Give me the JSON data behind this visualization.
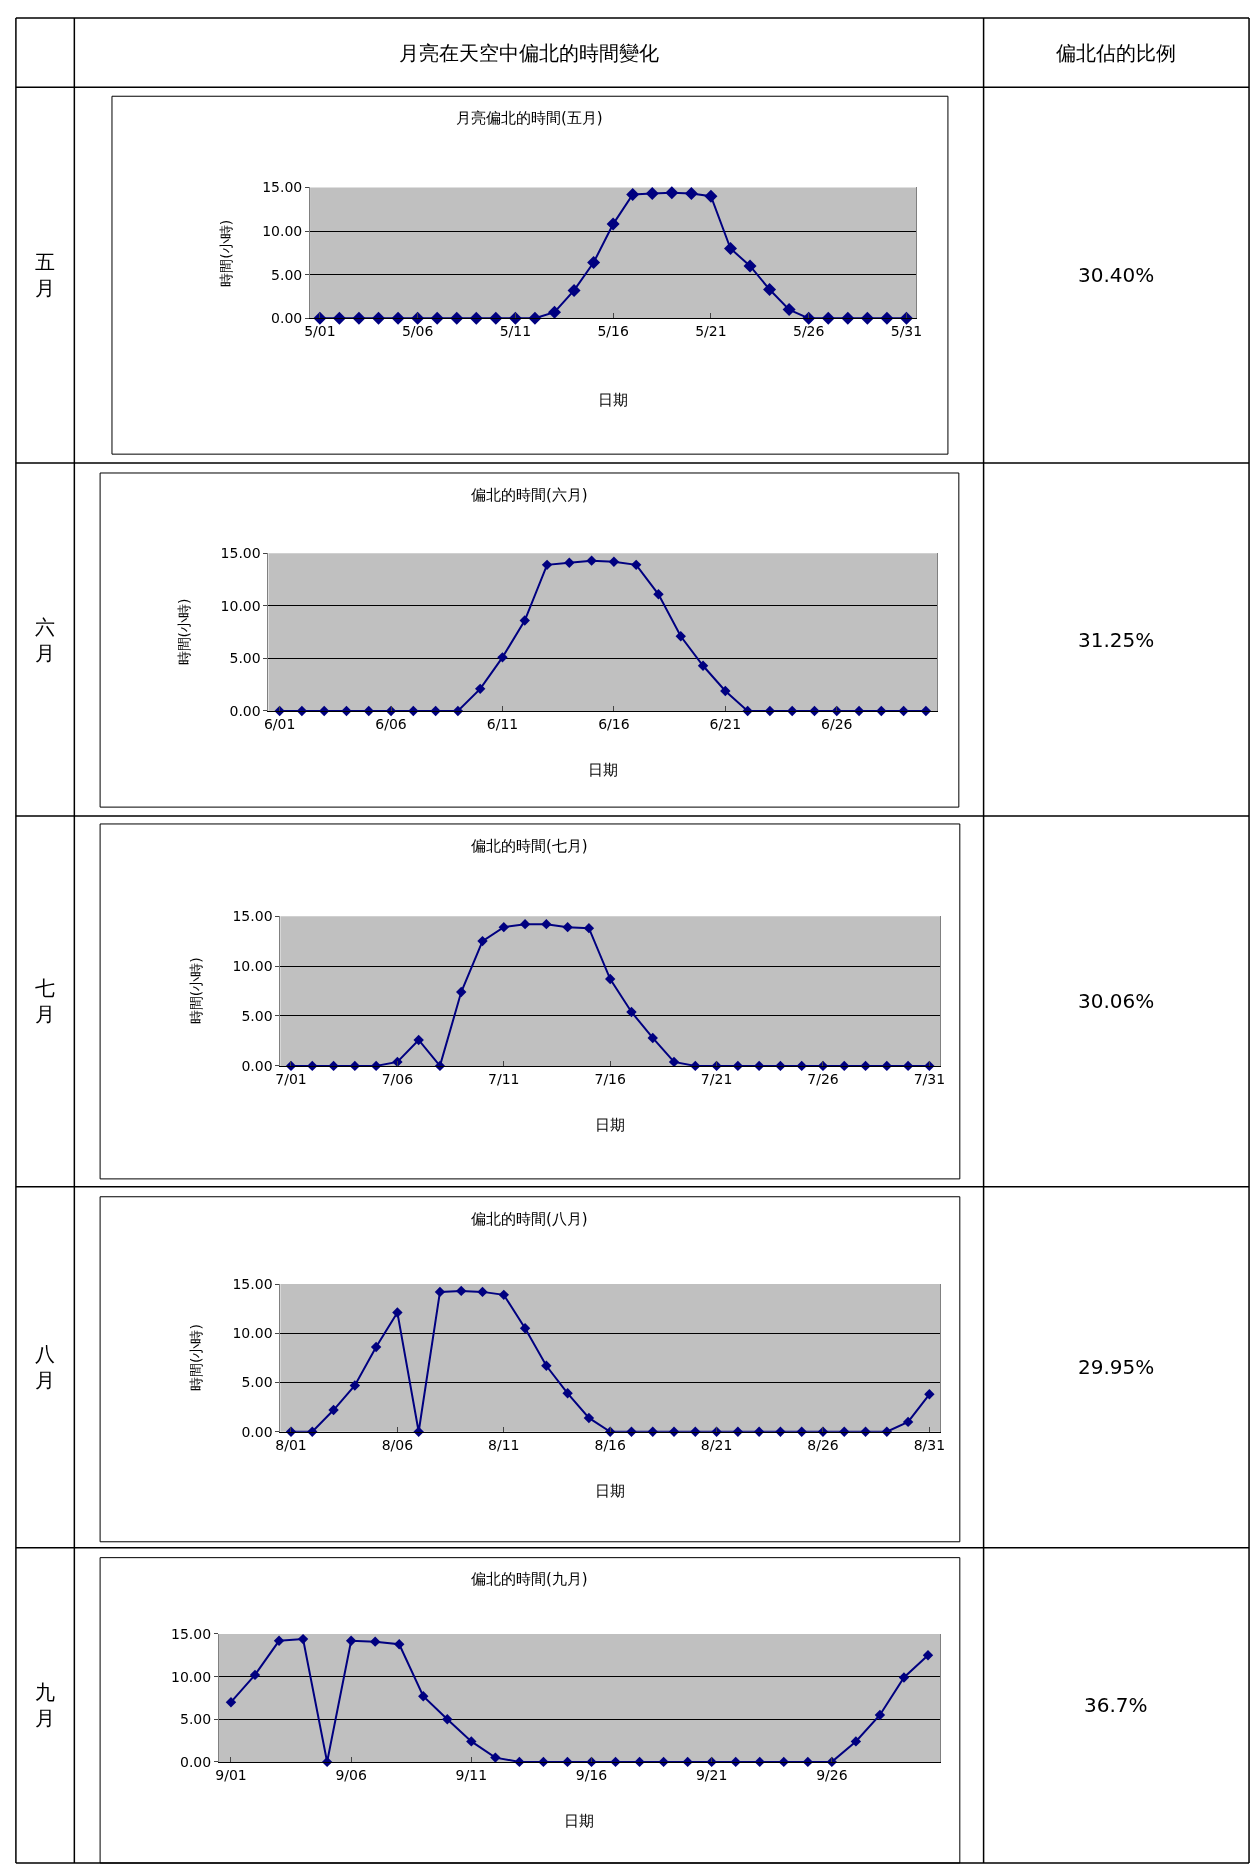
{
  "chart_data": [
    {
      "type": "other",
      "title": "月亮在天空中偏北的時間變化",
      "annotations": [
        "偏北佔的比例"
      ]
    },
    {
      "type": "line",
      "title": "月亮偏北的時間(五月)",
      "xlabel": "日期",
      "ylabel": "時間(小時)",
      "annotations": [
        "五月",
        "30.40%"
      ],
      "categories": [
        "5/01",
        null,
        null,
        null,
        null,
        "5/06",
        null,
        null,
        null,
        null,
        "5/11",
        null,
        null,
        null,
        null,
        "5/16",
        null,
        null,
        null,
        null,
        "5/21",
        null,
        null,
        null,
        null,
        "5/26",
        null,
        null,
        null,
        null,
        "5/31"
      ],
      "series": [
        {
          "color": "#000080",
          "values": [
            0,
            0,
            0,
            0,
            0,
            0,
            0,
            0,
            0,
            0,
            0,
            0,
            0.7,
            3.2,
            6.4,
            10.8,
            14.2,
            14.3,
            14.4,
            14.3,
            14.0,
            8.0,
            6.0,
            3.3,
            1.0,
            0,
            0,
            0,
            0,
            0,
            0
          ]
        }
      ],
      "ylim": [
        0,
        15
      ],
      "yticks": [
        {
          "value": 0,
          "label": "0.00"
        },
        {
          "value": 5,
          "label": "5.00"
        },
        {
          "value": 10,
          "label": "10.00"
        },
        {
          "value": 15,
          "label": "15.00"
        }
      ],
      "grid": "y",
      "marker": "diamond"
    },
    {
      "type": "line",
      "title": "偏北的時間(六月)",
      "xlabel": "日期",
      "ylabel": "時間(小時)",
      "annotations": [
        "六月",
        "31.25%"
      ],
      "categories": [
        "6/01",
        null,
        null,
        null,
        null,
        "6/06",
        null,
        null,
        null,
        null,
        "6/11",
        null,
        null,
        null,
        null,
        "6/16",
        null,
        null,
        null,
        null,
        "6/21",
        null,
        null,
        null,
        null,
        "6/26",
        null,
        null,
        null,
        null
      ],
      "series": [
        {
          "color": "#000080",
          "values": [
            0,
            0,
            0,
            0,
            0,
            0,
            0,
            0,
            0,
            2.1,
            5.1,
            8.6,
            13.9,
            14.1,
            14.3,
            14.2,
            13.9,
            11.1,
            7.1,
            4.3,
            1.9,
            0,
            0,
            0,
            0,
            0,
            0,
            0,
            0,
            0
          ]
        }
      ],
      "ylim": [
        0,
        15
      ],
      "yticks": [
        {
          "value": 0,
          "label": "0.00"
        },
        {
          "value": 5,
          "label": "5.00"
        },
        {
          "value": 10,
          "label": "10.00"
        },
        {
          "value": 15,
          "label": "15.00"
        }
      ],
      "grid": "y",
      "marker": "diamond"
    },
    {
      "type": "line",
      "title": "偏北的時間(七月)",
      "xlabel": "日期",
      "ylabel": "時間(小時)",
      "annotations": [
        "七月",
        "30.06%"
      ],
      "categories": [
        "7/01",
        null,
        null,
        null,
        null,
        "7/06",
        null,
        null,
        null,
        null,
        "7/11",
        null,
        null,
        null,
        null,
        "7/16",
        null,
        null,
        null,
        null,
        "7/21",
        null,
        null,
        null,
        null,
        "7/26",
        null,
        null,
        null,
        null,
        "7/31"
      ],
      "series": [
        {
          "color": "#000080",
          "values": [
            0,
            0,
            0,
            0,
            0,
            0.4,
            2.6,
            0,
            7.4,
            12.5,
            13.9,
            14.2,
            14.2,
            13.9,
            13.8,
            8.7,
            5.4,
            2.8,
            0.4,
            0,
            0,
            0,
            0,
            0,
            0,
            0,
            0,
            0,
            0,
            0,
            0
          ]
        }
      ],
      "ylim": [
        0,
        15
      ],
      "yticks": [
        {
          "value": 0,
          "label": "0.00"
        },
        {
          "value": 5,
          "label": "5.00"
        },
        {
          "value": 10,
          "label": "10.00"
        },
        {
          "value": 15,
          "label": "15.00"
        }
      ],
      "grid": "y",
      "marker": "diamond"
    },
    {
      "type": "line",
      "title": "偏北的時間(八月)",
      "xlabel": "日期",
      "ylabel": "時間(小時)",
      "annotations": [
        "八月",
        "29.95%"
      ],
      "categories": [
        "8/01",
        null,
        null,
        null,
        null,
        "8/06",
        null,
        null,
        null,
        null,
        "8/11",
        null,
        null,
        null,
        null,
        "8/16",
        null,
        null,
        null,
        null,
        "8/21",
        null,
        null,
        null,
        null,
        "8/26",
        null,
        null,
        null,
        null,
        "8/31"
      ],
      "series": [
        {
          "color": "#000080",
          "values": [
            0,
            0,
            2.2,
            4.7,
            8.6,
            12.1,
            0,
            14.2,
            14.3,
            14.2,
            13.9,
            10.5,
            6.7,
            3.9,
            1.4,
            0,
            0,
            0,
            0,
            0,
            0,
            0,
            0,
            0,
            0,
            0,
            0,
            0,
            0,
            1.0,
            3.8
          ]
        }
      ],
      "ylim": [
        0,
        15
      ],
      "yticks": [
        {
          "value": 0,
          "label": "0.00"
        },
        {
          "value": 5,
          "label": "5.00"
        },
        {
          "value": 10,
          "label": "10.00"
        },
        {
          "value": 15,
          "label": "15.00"
        }
      ],
      "grid": "y",
      "marker": "diamond"
    },
    {
      "type": "line",
      "title": "偏北的時間(九月)",
      "xlabel": "日期",
      "annotations": [
        "九月",
        "36.7%"
      ],
      "categories": [
        "9/01",
        null,
        null,
        null,
        null,
        "9/06",
        null,
        null,
        null,
        null,
        "9/11",
        null,
        null,
        null,
        null,
        "9/16",
        null,
        null,
        null,
        null,
        "9/21",
        null,
        null,
        null,
        null,
        "9/26",
        null,
        null,
        null,
        null
      ],
      "series": [
        {
          "color": "#000080",
          "values": [
            7.0,
            10.2,
            14.2,
            14.4,
            0,
            14.2,
            14.1,
            13.8,
            7.7,
            5.0,
            2.4,
            0.5,
            0,
            0,
            0,
            0,
            0,
            0,
            0,
            0,
            0,
            0,
            0,
            0,
            0,
            0,
            2.4,
            5.5,
            9.9,
            12.5
          ]
        }
      ],
      "ylim": [
        0,
        15
      ],
      "yticks": [
        {
          "value": 0,
          "label": "0.00"
        },
        {
          "value": 5,
          "label": "5.00"
        },
        {
          "value": 10,
          "label": "10.00"
        },
        {
          "value": 15,
          "label": "15.00"
        }
      ],
      "grid": "y",
      "marker": "diamond"
    }
  ]
}
